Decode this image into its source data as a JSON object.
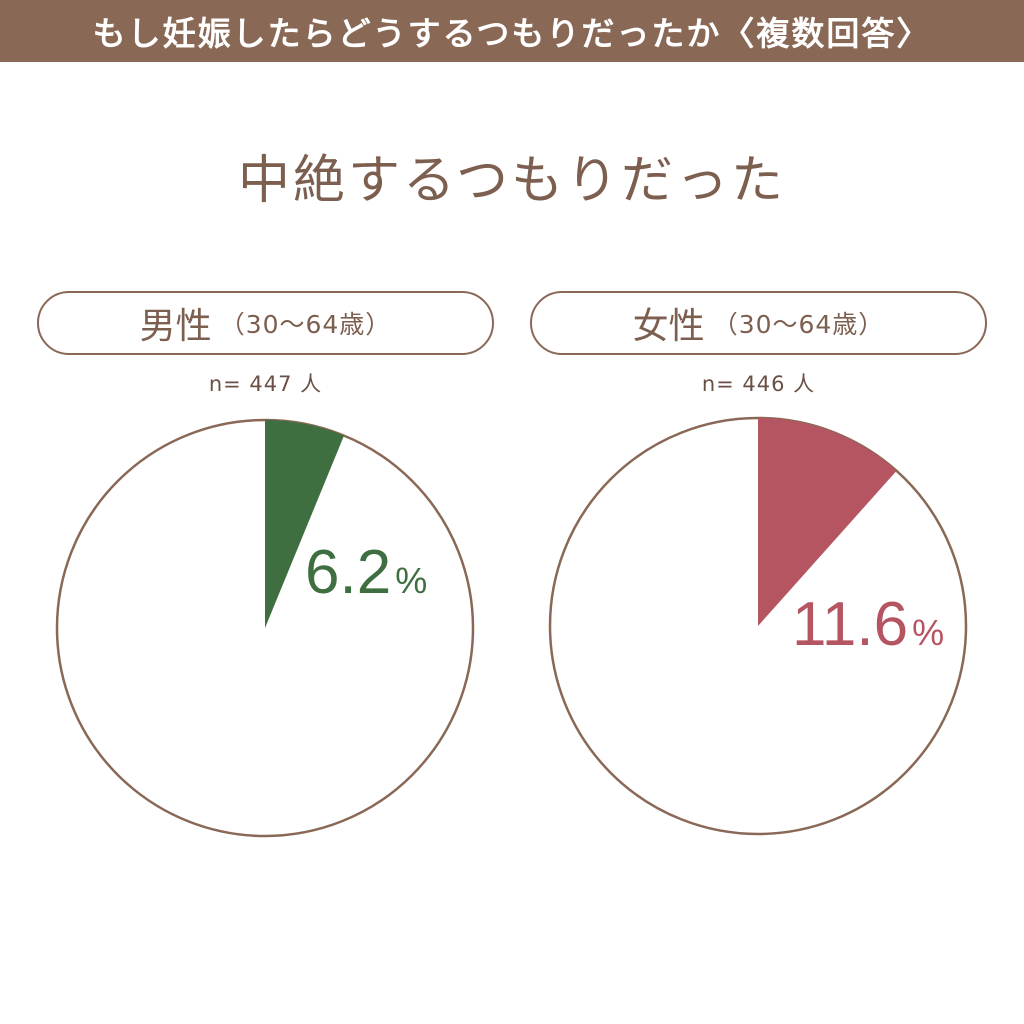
{
  "header": {
    "title": "もし妊娠したらどうするつもりだったか〈複数回答〉"
  },
  "subtitle": "中絶するつもりだった",
  "colors": {
    "header_bg": "#8a6856",
    "outline": "#8a6856",
    "text": "#7d5f50",
    "male_slice": "#3f6e40",
    "female_slice": "#b45561"
  },
  "panels": [
    {
      "group": "男性",
      "range": "（30〜64歳）",
      "sample": "n= 447 人"
    },
    {
      "group": "女性",
      "range": "（30〜64歳）",
      "sample": "n= 446 人"
    }
  ],
  "chart_data": [
    {
      "type": "pie",
      "title": "男性（30〜64歳）",
      "categories": [
        "中絶するつもりだった",
        ""
      ],
      "values": [
        6.2,
        93.8
      ],
      "label_number": "6.2",
      "label_unit": "%",
      "slice_color": "#3f6e40"
    },
    {
      "type": "pie",
      "title": "女性（30〜64歳）",
      "categories": [
        "中絶するつもりだった",
        ""
      ],
      "values": [
        11.6,
        88.4
      ],
      "label_number": "11.6",
      "label_unit": "%",
      "slice_color": "#b45561"
    }
  ]
}
